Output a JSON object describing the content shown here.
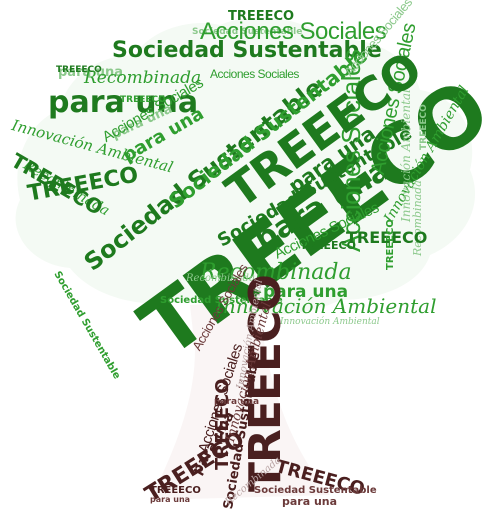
{
  "words": {
    "treeeco": "TREEECO",
    "para_una": "para una",
    "sociedad": "Sociedad Sustentable",
    "acciones": "Acciones Sociales",
    "recombinada": "Recombinada",
    "innovacion": "Innovación Ambiental"
  },
  "colors": {
    "leaf_dark": "#1e7a1e",
    "leaf_mid": "#2f9e2f",
    "leaf_light": "#8cc98c",
    "leaf_pale": "#c9e6c9",
    "trunk_dark": "#4a1f1f",
    "trunk_mid": "#6b3a3a",
    "trunk_light": "#b8a3a3",
    "background": "#ffffff"
  }
}
